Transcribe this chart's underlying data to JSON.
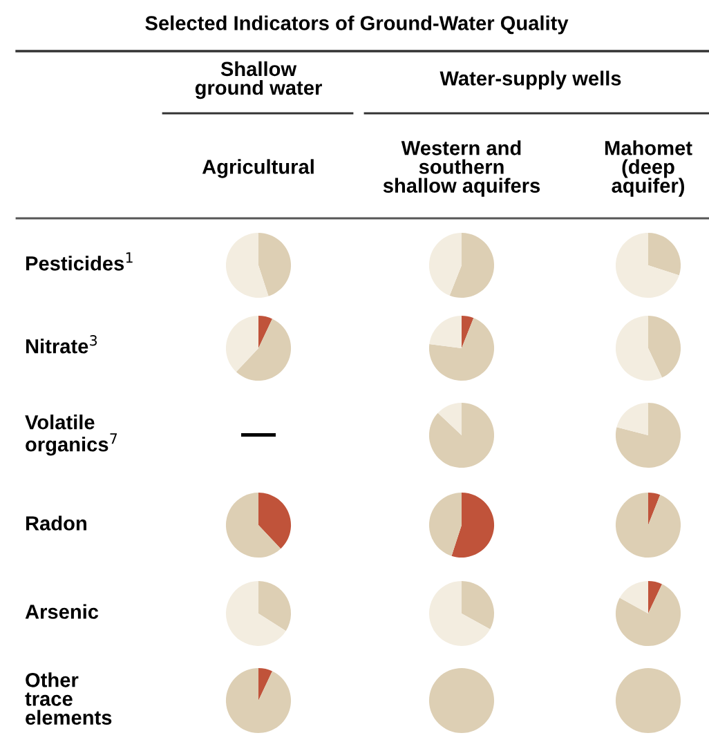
{
  "chart_data": [
    {
      "type": "other",
      "title": "Selected Indicators of Ground-Water Quality",
      "annotations": [
        "Shallow\nground water",
        "Water-supply wells",
        "Agricultural",
        "Western and\nsouthern\nshallow aquifers",
        "Mahomet\n(deep\naquifer)",
        "Pesticides$^{1}$",
        "Nitrate$^{3}$",
        "Volatile\norganics$^{7}$",
        "Radon",
        "Arsenic",
        "Other\ntrace\nelements"
      ]
    },
    {
      "type": "pie",
      "categories": [
        null,
        null,
        null
      ],
      "values": [
        0,
        45,
        55
      ],
      "colors": [
        "#c0533a",
        "#ddcfb4",
        "#f3ede0"
      ]
    },
    {
      "type": "pie",
      "categories": [
        null,
        null,
        null
      ],
      "values": [
        0,
        56,
        44
      ],
      "colors": [
        "#c0533a",
        "#ddcfb4",
        "#f3ede0"
      ]
    },
    {
      "type": "pie",
      "categories": [
        null,
        null,
        null
      ],
      "values": [
        0,
        30,
        70
      ],
      "colors": [
        "#c0533a",
        "#ddcfb4",
        "#f3ede0"
      ]
    },
    {
      "type": "pie",
      "categories": [
        null,
        null,
        null
      ],
      "values": [
        7,
        55,
        38
      ],
      "colors": [
        "#c0533a",
        "#ddcfb4",
        "#f3ede0"
      ]
    },
    {
      "type": "pie",
      "categories": [
        null,
        null,
        null
      ],
      "values": [
        6,
        71,
        23
      ],
      "colors": [
        "#c0533a",
        "#ddcfb4",
        "#f3ede0"
      ]
    },
    {
      "type": "pie",
      "categories": [
        null,
        null,
        null
      ],
      "values": [
        0,
        43,
        57
      ],
      "colors": [
        "#c0533a",
        "#ddcfb4",
        "#f3ede0"
      ]
    },
    {
      "type": "other",
      "annotations": [
        "—"
      ]
    },
    {
      "type": "pie",
      "categories": [
        null,
        null,
        null
      ],
      "values": [
        0,
        87,
        13
      ],
      "colors": [
        "#c0533a",
        "#ddcfb4",
        "#f3ede0"
      ]
    },
    {
      "type": "pie",
      "categories": [
        null,
        null,
        null
      ],
      "values": [
        0,
        79,
        21
      ],
      "colors": [
        "#c0533a",
        "#ddcfb4",
        "#f3ede0"
      ]
    },
    {
      "type": "pie",
      "categories": [
        null,
        null,
        null
      ],
      "values": [
        38,
        62,
        0
      ],
      "colors": [
        "#c0533a",
        "#ddcfb4",
        "#f3ede0"
      ]
    },
    {
      "type": "pie",
      "categories": [
        null,
        null,
        null
      ],
      "values": [
        55,
        45,
        0
      ],
      "colors": [
        "#c0533a",
        "#ddcfb4",
        "#f3ede0"
      ]
    },
    {
      "type": "pie",
      "categories": [
        null,
        null,
        null
      ],
      "values": [
        6,
        94,
        0
      ],
      "colors": [
        "#c0533a",
        "#ddcfb4",
        "#f3ede0"
      ]
    },
    {
      "type": "pie",
      "categories": [
        null,
        null,
        null
      ],
      "values": [
        0,
        34,
        66
      ],
      "colors": [
        "#c0533a",
        "#ddcfb4",
        "#f3ede0"
      ]
    },
    {
      "type": "pie",
      "categories": [
        null,
        null,
        null
      ],
      "values": [
        0,
        33,
        67
      ],
      "colors": [
        "#c0533a",
        "#ddcfb4",
        "#f3ede0"
      ]
    },
    {
      "type": "pie",
      "categories": [
        null,
        null,
        null
      ],
      "values": [
        7,
        76,
        17
      ],
      "colors": [
        "#c0533a",
        "#ddcfb4",
        "#f3ede0"
      ]
    },
    {
      "type": "pie",
      "categories": [
        null,
        null,
        null
      ],
      "values": [
        7,
        93,
        0
      ],
      "colors": [
        "#c0533a",
        "#ddcfb4",
        "#f3ede0"
      ]
    },
    {
      "type": "pie",
      "categories": [
        null,
        null,
        null
      ],
      "values": [
        0,
        100,
        0
      ],
      "colors": [
        "#c0533a",
        "#ddcfb4",
        "#f3ede0"
      ]
    },
    {
      "type": "pie",
      "categories": [
        null,
        null,
        null
      ],
      "values": [
        0,
        100,
        0
      ],
      "colors": [
        "#c0533a",
        "#ddcfb4",
        "#f3ede0"
      ]
    }
  ]
}
